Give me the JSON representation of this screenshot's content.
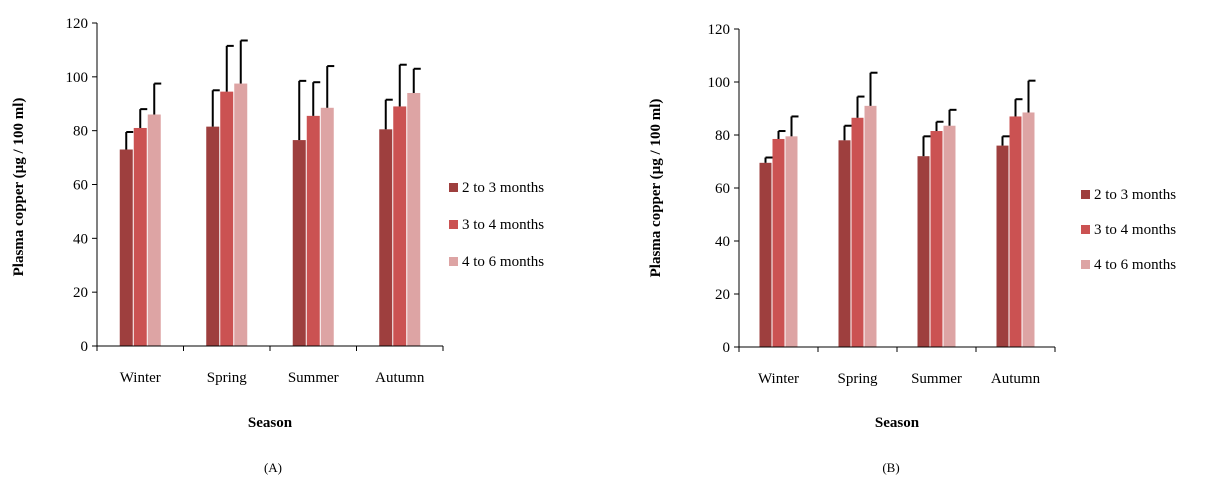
{
  "colors": {
    "series": [
      "#9E3F3E",
      "#CB5252",
      "#DDA4A4"
    ],
    "axis": "#000000",
    "error_bar": "#000000"
  },
  "chart_data": [
    {
      "type": "bar",
      "panel_label": "(A)",
      "title": "",
      "xlabel": "Season",
      "ylabel": "Plasma copper (µg / 100 ml)",
      "ylim": [
        0,
        120
      ],
      "yticks": [
        0,
        20,
        40,
        60,
        80,
        100,
        120
      ],
      "grid": false,
      "legend_position": "right",
      "error_bars": "upper",
      "categories": [
        "Winter",
        "Spring",
        "Summer",
        "Autumn"
      ],
      "series": [
        {
          "name": "2 to 3 months",
          "values": [
            73,
            81.5,
            76.5,
            80.5
          ],
          "errors": [
            6.5,
            13.5,
            22,
            11
          ]
        },
        {
          "name": "3 to 4 months",
          "values": [
            81,
            94.5,
            85.5,
            89
          ],
          "errors": [
            7,
            17,
            12.5,
            15.5
          ]
        },
        {
          "name": "4 to 6 months",
          "values": [
            86,
            97.5,
            88.5,
            94
          ],
          "errors": [
            11.5,
            16,
            15.5,
            9
          ]
        }
      ]
    },
    {
      "type": "bar",
      "panel_label": "(B)",
      "title": "",
      "xlabel": "Season",
      "ylabel": "Plasma copper  (µg / 100 ml)",
      "ylim": [
        0,
        120
      ],
      "yticks": [
        0,
        20,
        40,
        60,
        80,
        100,
        120
      ],
      "grid": false,
      "legend_position": "right",
      "error_bars": "upper",
      "categories": [
        "Winter",
        "Spring",
        "Summer",
        "Autumn"
      ],
      "series": [
        {
          "name": "2 to 3 months",
          "values": [
            69.5,
            78,
            72,
            76
          ],
          "errors": [
            2,
            5.5,
            7.5,
            3.5
          ]
        },
        {
          "name": "3 to 4 months",
          "values": [
            78.5,
            86.5,
            81.5,
            87
          ],
          "errors": [
            3,
            8,
            3.5,
            6.5
          ]
        },
        {
          "name": "4 to 6 months",
          "values": [
            79.5,
            91,
            83.5,
            88.5
          ],
          "errors": [
            7.5,
            12.5,
            6,
            12
          ]
        }
      ]
    }
  ]
}
